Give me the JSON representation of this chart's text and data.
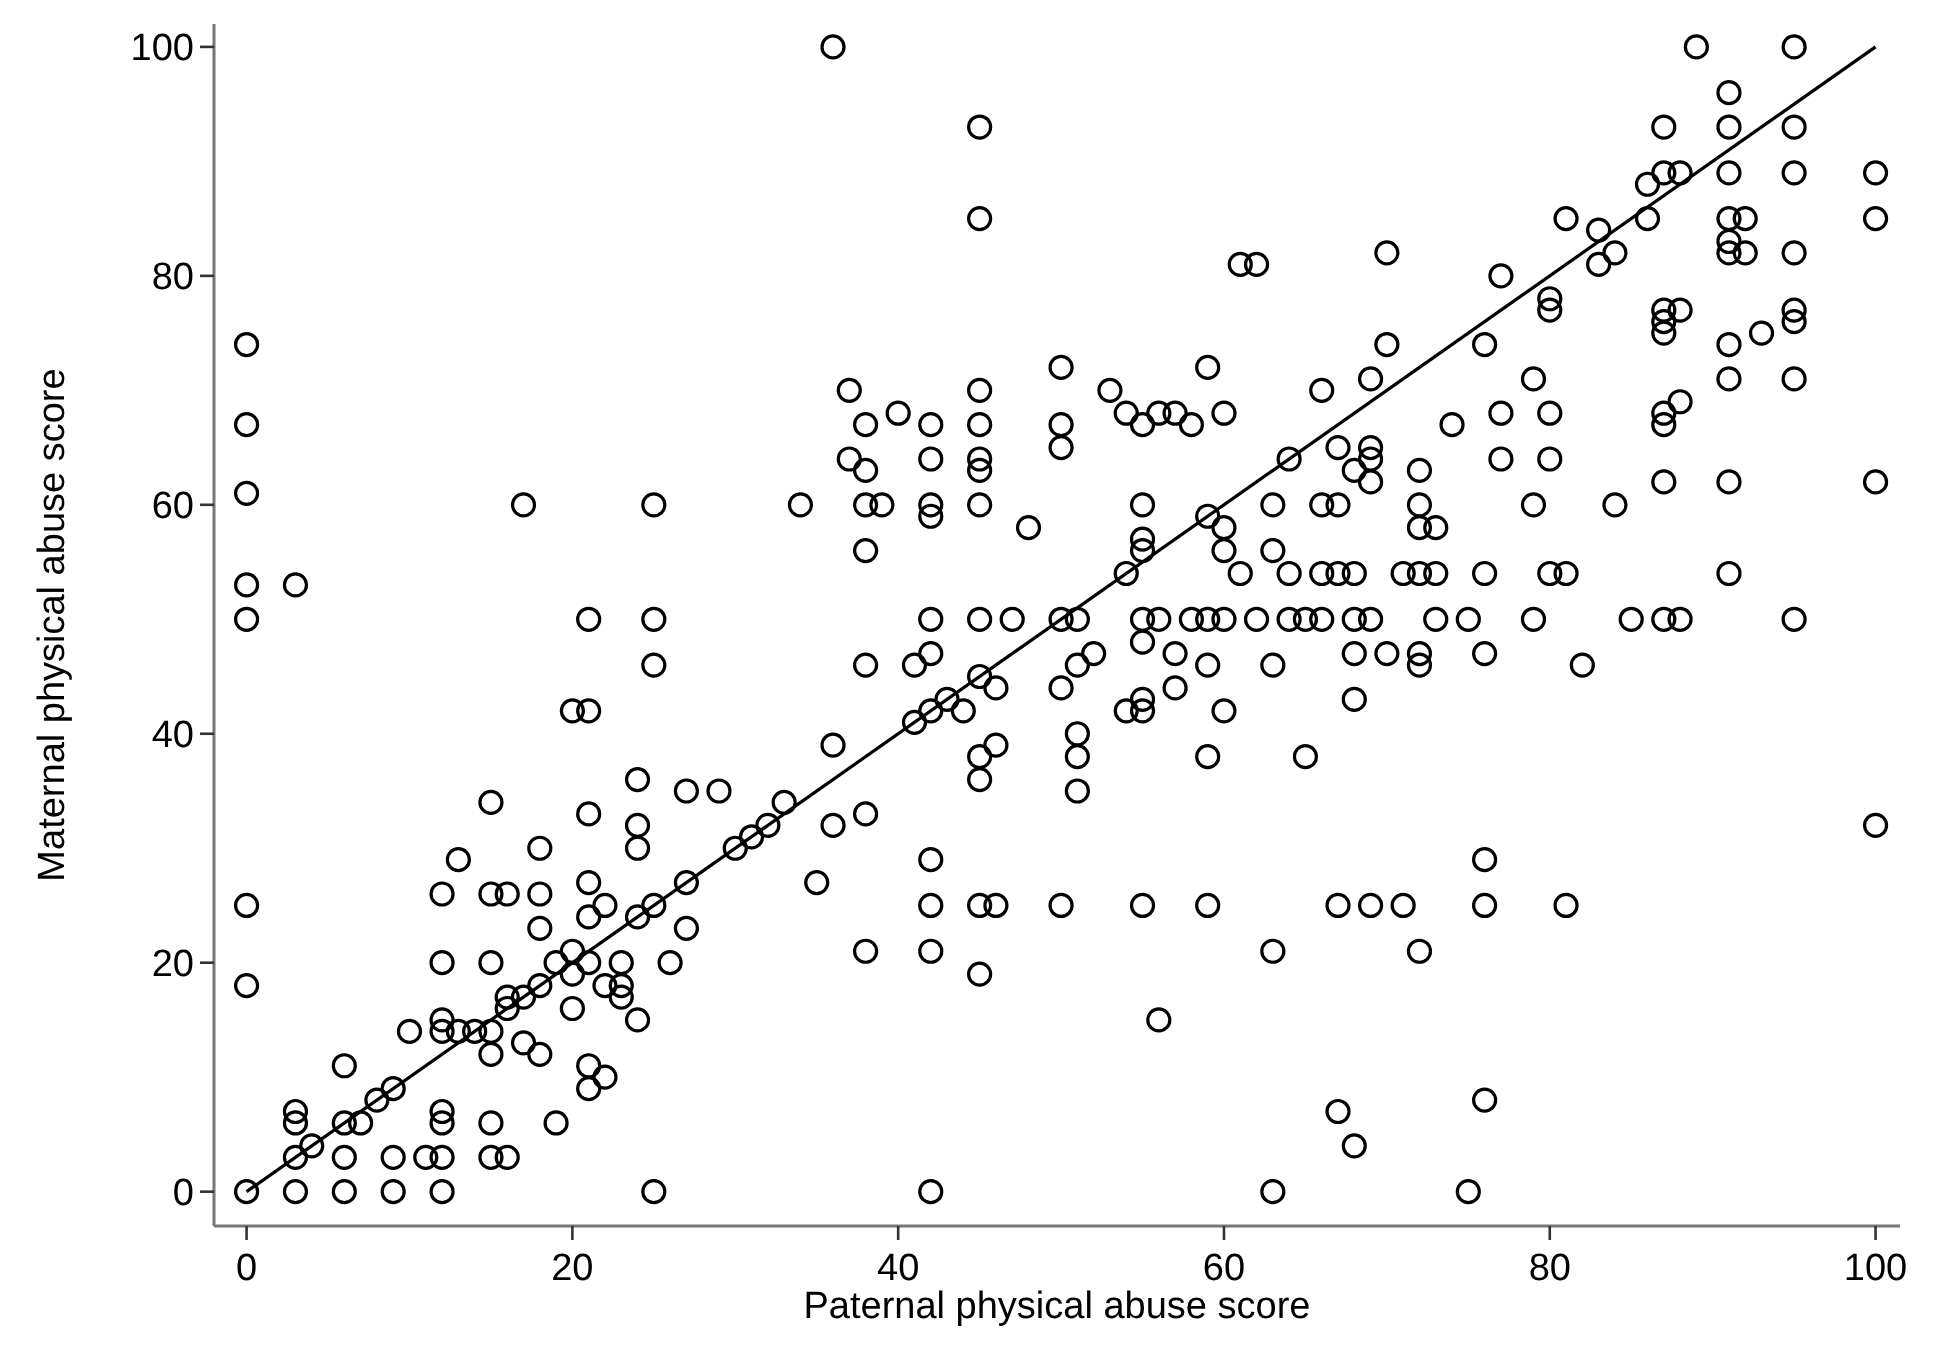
{
  "chart_data": {
    "type": "scatter",
    "xlabel": "Paternal physical abuse score",
    "ylabel": "Maternal physical abuse score",
    "xlim": [
      -2,
      101.5
    ],
    "ylim": [
      -3,
      102
    ],
    "xticks": [
      0,
      20,
      40,
      60,
      80,
      100
    ],
    "yticks": [
      0,
      20,
      40,
      60,
      80,
      100
    ],
    "grid": false,
    "series": [
      {
        "marker": "circle",
        "color": "#000000",
        "x": [
          0,
          0,
          0,
          0,
          0,
          0,
          0,
          0,
          3,
          3,
          3,
          3,
          3,
          4,
          6,
          6,
          6,
          6,
          7,
          8,
          9,
          9,
          9,
          10,
          11,
          12,
          12,
          12,
          12,
          12,
          12,
          12,
          12,
          13,
          13,
          14,
          15,
          15,
          15,
          15,
          15,
          15,
          15,
          16,
          16,
          16,
          16,
          17,
          17,
          17,
          18,
          18,
          18,
          18,
          18,
          19,
          19,
          20,
          20,
          20,
          20,
          21,
          21,
          21,
          21,
          21,
          21,
          21,
          21,
          22,
          22,
          22,
          23,
          23,
          23,
          24,
          24,
          24,
          24,
          24,
          25,
          25,
          25,
          25,
          25,
          26,
          27,
          27,
          27,
          29,
          30,
          31,
          32,
          33,
          34,
          35,
          36,
          36,
          36,
          37,
          37,
          38,
          38,
          38,
          38,
          38,
          38,
          38,
          39,
          40,
          41,
          41,
          42,
          42,
          42,
          42,
          42,
          42,
          42,
          42,
          42,
          42,
          42,
          43,
          44,
          45,
          45,
          45,
          45,
          45,
          45,
          45,
          45,
          45,
          45,
          45,
          45,
          45,
          46,
          46,
          46,
          47,
          48,
          50,
          50,
          50,
          50,
          50,
          50,
          51,
          51,
          51,
          51,
          51,
          52,
          53,
          54,
          54,
          54,
          55,
          55,
          55,
          55,
          55,
          55,
          55,
          55,
          55,
          56,
          56,
          56,
          57,
          57,
          57,
          58,
          58,
          59,
          59,
          59,
          59,
          59,
          59,
          60,
          60,
          60,
          60,
          60,
          61,
          61,
          62,
          62,
          63,
          63,
          63,
          63,
          63,
          64,
          64,
          64,
          65,
          65,
          66,
          66,
          66,
          66,
          67,
          67,
          67,
          67,
          67,
          68,
          68,
          68,
          68,
          68,
          68,
          69,
          69,
          69,
          69,
          69,
          69,
          70,
          70,
          70,
          71,
          71,
          72,
          72,
          72,
          72,
          72,
          72,
          72,
          73,
          73,
          73,
          74,
          75,
          75,
          76,
          76,
          76,
          76,
          76,
          76,
          77,
          77,
          77,
          79,
          79,
          79,
          80,
          80,
          80,
          80,
          80,
          81,
          81,
          81,
          82,
          83,
          83,
          84,
          84,
          85,
          86,
          86,
          87,
          87,
          87,
          87,
          87,
          87,
          87,
          87,
          87,
          88,
          88,
          88,
          88,
          89,
          91,
          91,
          91,
          91,
          91,
          91,
          91,
          91,
          91,
          91,
          92,
          92,
          93,
          95,
          95,
          95,
          95,
          95,
          95,
          95,
          95,
          100,
          100,
          100,
          100
        ],
        "values": [
          74,
          67,
          61,
          53,
          50,
          25,
          18,
          0,
          53,
          7,
          6,
          3,
          0,
          4,
          11,
          6,
          3,
          0,
          6,
          8,
          3,
          0,
          9,
          14,
          3,
          26,
          20,
          15,
          14,
          7,
          6,
          3,
          0,
          29,
          14,
          14,
          34,
          26,
          20,
          14,
          12,
          6,
          3,
          26,
          17,
          16,
          3,
          60,
          13,
          17,
          30,
          26,
          23,
          18,
          12,
          20,
          6,
          42,
          21,
          19,
          16,
          50,
          42,
          33,
          27,
          24,
          20,
          11,
          9,
          25,
          18,
          10,
          18,
          17,
          20,
          36,
          32,
          30,
          24,
          15,
          60,
          50,
          46,
          25,
          0,
          20,
          35,
          27,
          23,
          35,
          30,
          31,
          32,
          34,
          60,
          27,
          39,
          100,
          32,
          64,
          70,
          67,
          63,
          60,
          56,
          46,
          33,
          21,
          60,
          68,
          41,
          46,
          67,
          64,
          60,
          59,
          50,
          47,
          42,
          29,
          25,
          21,
          0,
          43,
          42,
          93,
          85,
          70,
          67,
          64,
          63,
          60,
          50,
          45,
          38,
          36,
          25,
          19,
          44,
          39,
          25,
          50,
          58,
          72,
          67,
          65,
          50,
          44,
          25,
          46,
          40,
          38,
          35,
          50,
          47,
          70,
          68,
          54,
          42,
          67,
          60,
          57,
          56,
          50,
          48,
          43,
          42,
          25,
          68,
          50,
          15,
          68,
          47,
          44,
          67,
          50,
          72,
          59,
          46,
          38,
          25,
          50,
          68,
          58,
          56,
          42,
          50,
          81,
          54,
          81,
          50,
          60,
          56,
          46,
          21,
          0,
          64,
          54,
          50,
          50,
          38,
          70,
          60,
          54,
          50,
          65,
          60,
          54,
          25,
          7,
          63,
          54,
          50,
          47,
          43,
          4,
          71,
          65,
          64,
          62,
          50,
          25,
          82,
          74,
          47,
          54,
          25,
          63,
          60,
          58,
          54,
          47,
          46,
          21,
          58,
          54,
          50,
          67,
          50,
          0,
          74,
          54,
          47,
          29,
          25,
          8,
          80,
          68,
          64,
          71,
          60,
          50,
          77,
          78,
          68,
          64,
          54,
          85,
          54,
          25,
          46,
          81,
          84,
          82,
          60,
          50,
          88,
          85,
          93,
          89,
          77,
          76,
          75,
          68,
          67,
          62,
          50,
          77,
          69,
          50,
          89,
          100,
          96,
          93,
          89,
          85,
          83,
          82,
          74,
          71,
          62,
          54,
          85,
          82,
          75,
          100,
          93,
          89,
          82,
          77,
          76,
          71,
          50,
          89,
          85,
          62,
          32
        ]
      },
      {
        "type": "line",
        "marker": "none",
        "color": "#000000",
        "x": [
          0,
          100
        ],
        "values": [
          0,
          100
        ]
      }
    ]
  }
}
